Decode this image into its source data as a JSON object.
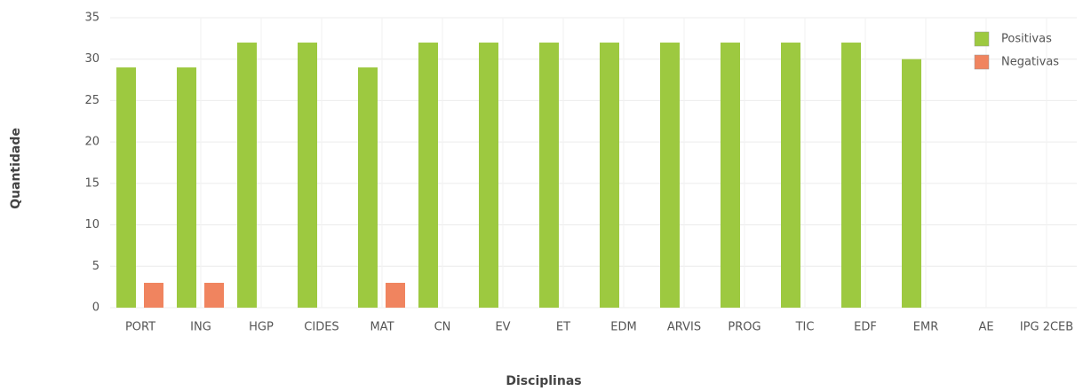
{
  "chart_data": {
    "type": "bar",
    "x_label": "Disciplinas",
    "y_label": "Quantidade",
    "categories": [
      "PORT",
      "ING",
      "HGP",
      "CIDES",
      "MAT",
      "CN",
      "EV",
      "ET",
      "EDM",
      "ARVIS",
      "PROG",
      "TIC",
      "EDF",
      "EMR",
      "AE",
      "IPG 2CEB"
    ],
    "series": [
      {
        "name": "Positivas",
        "color": "#9dc940",
        "values": [
          29,
          29,
          32,
          32,
          29,
          32,
          32,
          32,
          32,
          32,
          32,
          32,
          32,
          30,
          0,
          0
        ]
      },
      {
        "name": "Negativas",
        "color": "#f0845f",
        "values": [
          3,
          3,
          0,
          0,
          3,
          0,
          0,
          0,
          0,
          0,
          0,
          0,
          0,
          0,
          0,
          0
        ]
      }
    ],
    "ylim": [
      0,
      35
    ],
    "yticks": [
      0,
      5,
      10,
      15,
      20,
      25,
      30,
      35
    ],
    "grid": true,
    "legend": "top-right"
  }
}
